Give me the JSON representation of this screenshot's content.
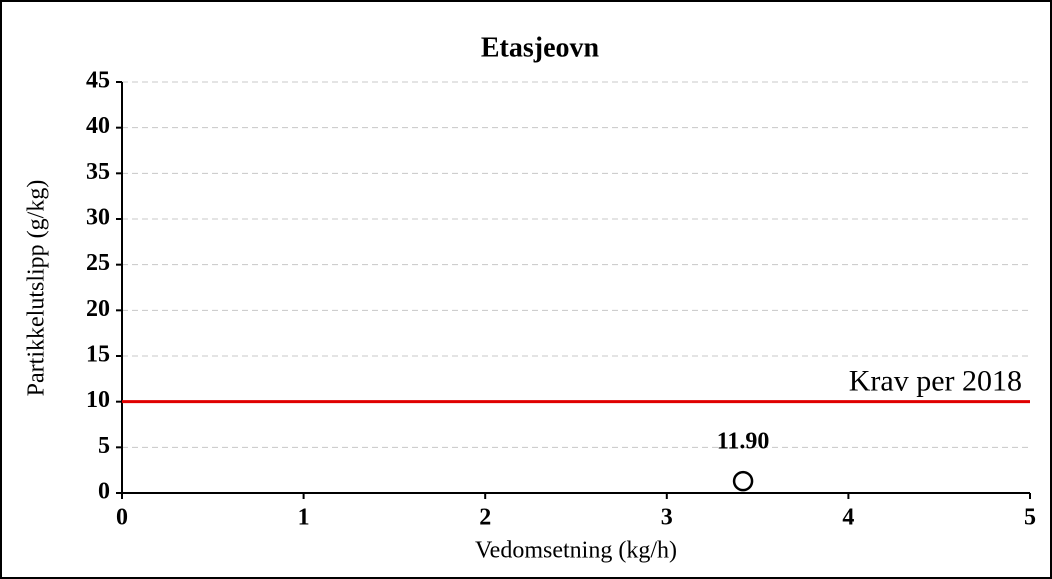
{
  "chart_data": {
    "type": "scatter",
    "title": "Etasjeovn",
    "x_label": "Vedomsetning (kg/h)",
    "y_label": "Partikkelutslipp (g/kg)",
    "series": [
      {
        "color": "#000000",
        "x": [
          3.42
        ],
        "values": [
          1.3
        ]
      }
    ],
    "annotations": [
      {
        "text": "11.90"
      }
    ],
    "hline": {
      "value": 10,
      "label": "Krav per 2018",
      "color": "#e00000"
    },
    "xlim": [
      0,
      5
    ],
    "xticks": [
      0,
      1,
      2,
      3,
      4,
      5
    ],
    "ylim": [
      0,
      45
    ],
    "yticks": [
      0,
      5,
      10,
      15,
      20,
      25,
      30,
      35,
      40,
      45
    ],
    "grid": true
  }
}
